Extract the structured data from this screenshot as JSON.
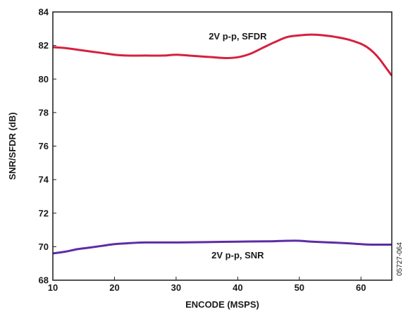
{
  "chart_data": {
    "type": "line",
    "xlabel": "ENCODE (MSPS)",
    "ylabel": "SNR/SFDR (dB)",
    "xlim": [
      10,
      65
    ],
    "ylim": [
      68,
      84
    ],
    "xticks": [
      10,
      20,
      30,
      40,
      50,
      60
    ],
    "yticks": [
      68,
      70,
      72,
      74,
      76,
      78,
      80,
      82,
      84
    ],
    "grid": false,
    "series": [
      {
        "name": "2V p-p, SFDR",
        "color": "#d6203f",
        "x": [
          10,
          12,
          14,
          16,
          18,
          20,
          22,
          25,
          28,
          30,
          32,
          34,
          36,
          38,
          40,
          42,
          44,
          46,
          48,
          50,
          52,
          54,
          56,
          58,
          60,
          61,
          62,
          63,
          64,
          65
        ],
        "y": [
          81.9,
          81.85,
          81.75,
          81.65,
          81.55,
          81.45,
          81.4,
          81.4,
          81.4,
          81.45,
          81.4,
          81.35,
          81.3,
          81.25,
          81.3,
          81.5,
          81.85,
          82.2,
          82.5,
          82.6,
          82.65,
          82.6,
          82.5,
          82.35,
          82.1,
          81.9,
          81.6,
          81.2,
          80.7,
          80.2
        ]
      },
      {
        "name": "2V p-p, SNR",
        "color": "#5e2ca5",
        "x": [
          10,
          12,
          14,
          16,
          18,
          20,
          22,
          25,
          30,
          35,
          40,
          45,
          48,
          50,
          52,
          55,
          58,
          60,
          62,
          65
        ],
        "y": [
          69.6,
          69.7,
          69.85,
          69.95,
          70.05,
          70.15,
          70.2,
          70.25,
          70.25,
          70.27,
          70.3,
          70.32,
          70.35,
          70.35,
          70.3,
          70.25,
          70.2,
          70.15,
          70.12,
          70.12
        ]
      }
    ],
    "annotations": [
      {
        "text": "2V p-p, SFDR",
        "x": 40,
        "y": 82.55
      },
      {
        "text": "2V p-p, SNR",
        "x": 40,
        "y": 69.5
      }
    ],
    "figure_id": "05727-064"
  }
}
